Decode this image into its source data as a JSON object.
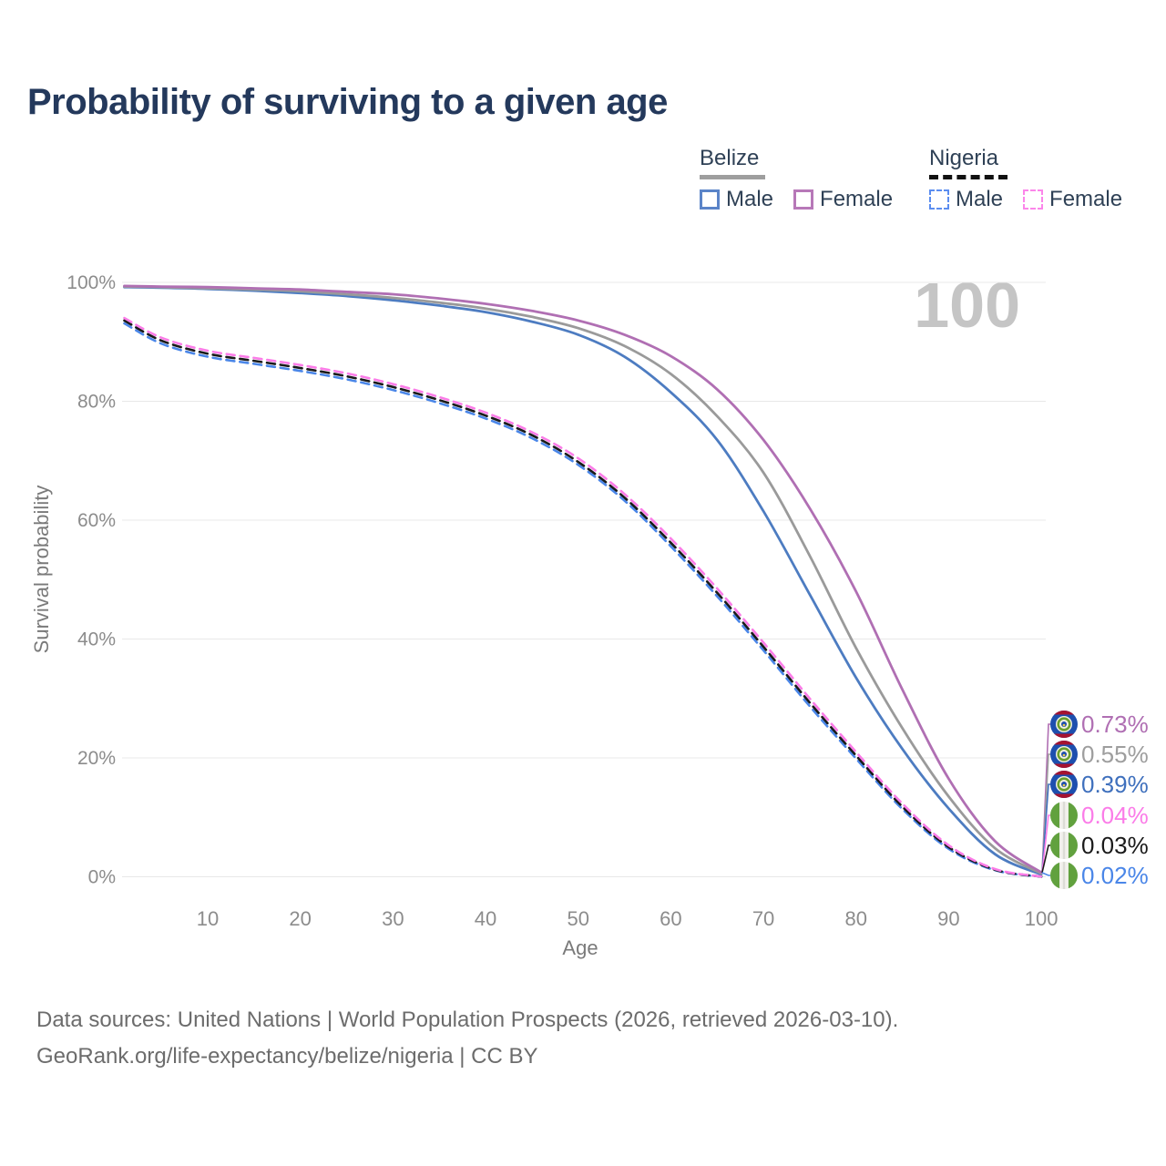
{
  "title": "Probability of surviving to a given age",
  "watermark": "100",
  "legend": {
    "groups": [
      {
        "country": "Belize",
        "line_style": "solid",
        "items": [
          {
            "label": "Male",
            "color": "#5b84c8"
          },
          {
            "label": "Female",
            "color": "#b778b8"
          }
        ]
      },
      {
        "country": "Nigeria",
        "line_style": "dashed",
        "items": [
          {
            "label": "Male",
            "color": "#5b8df0"
          },
          {
            "label": "Female",
            "color": "#fb86ea"
          }
        ]
      }
    ]
  },
  "chart_data": {
    "type": "line",
    "title": "Probability of surviving to a given age",
    "xlabel": "Age",
    "ylabel": "Survival probability",
    "xlim": [
      1,
      100
    ],
    "ylim": [
      0,
      100
    ],
    "grid": "horizontal",
    "legend_position": "top-right",
    "x_tick_values": [
      10,
      20,
      30,
      40,
      50,
      60,
      70,
      80,
      90,
      100
    ],
    "x_tick_labels": [
      "10",
      "20",
      "30",
      "40",
      "50",
      "60",
      "70",
      "80",
      "90",
      "100"
    ],
    "y_tick_values": [
      0,
      20,
      40,
      60,
      80,
      100
    ],
    "y_tick_labels": [
      "0%",
      "20%",
      "40%",
      "60%",
      "80%",
      "100%"
    ],
    "x": [
      1,
      5,
      10,
      15,
      20,
      25,
      30,
      35,
      40,
      45,
      50,
      55,
      60,
      65,
      70,
      75,
      80,
      85,
      90,
      95,
      100
    ],
    "series": [
      {
        "id": "belize-male",
        "name": "Belize Male",
        "country": "Belize",
        "sex": "Male",
        "color": "#4d7cc1",
        "dash": "solid",
        "end_label": "0.39%",
        "values": [
          99.2,
          99.1,
          98.9,
          98.6,
          98.2,
          97.7,
          97.0,
          96.1,
          95.0,
          93.4,
          91.2,
          87.5,
          81.5,
          73.5,
          61.5,
          47.5,
          33.5,
          21.5,
          11.5,
          3.8,
          0.39
        ]
      },
      {
        "id": "belize-both",
        "name": "Belize Both sexes",
        "country": "Belize",
        "sex": "Both",
        "color": "#9a9a9a",
        "dash": "solid",
        "end_label": "0.55%",
        "values": [
          99.3,
          99.2,
          99.0,
          98.8,
          98.5,
          98.0,
          97.4,
          96.6,
          95.6,
          94.2,
          92.3,
          89.3,
          84.6,
          77.5,
          68.0,
          54.0,
          38.5,
          25.0,
          13.5,
          4.8,
          0.55
        ]
      },
      {
        "id": "belize-female",
        "name": "Belize Female",
        "country": "Belize",
        "sex": "Female",
        "color": "#b06fb3",
        "dash": "solid",
        "end_label": "0.73%",
        "values": [
          99.4,
          99.3,
          99.2,
          99.0,
          98.8,
          98.4,
          98.0,
          97.3,
          96.4,
          95.2,
          93.6,
          91.2,
          87.6,
          82.0,
          73.5,
          62.0,
          48.0,
          31.5,
          16.5,
          6.0,
          0.73
        ]
      },
      {
        "id": "nigeria-male",
        "name": "Nigeria Male",
        "country": "Nigeria",
        "sex": "Male",
        "color": "#4a86e8",
        "dash": "dashed",
        "end_label": "0.02%",
        "values": [
          93.1,
          89.7,
          87.5,
          86.3,
          85.1,
          83.7,
          81.9,
          79.7,
          77.1,
          73.8,
          69.3,
          63.3,
          55.6,
          47.2,
          38.1,
          28.7,
          19.9,
          11.4,
          4.7,
          1.1,
          0.02
        ]
      },
      {
        "id": "nigeria-both",
        "name": "Nigeria Both sexes",
        "country": "Nigeria",
        "sex": "Both",
        "color": "#1a1a1a",
        "dash": "dashed",
        "end_label": "0.03%",
        "values": [
          93.6,
          90.2,
          88.0,
          86.8,
          85.6,
          84.2,
          82.4,
          80.2,
          77.6,
          74.3,
          69.8,
          63.8,
          56.2,
          47.8,
          38.7,
          29.3,
          20.4,
          11.8,
          5.0,
          1.2,
          0.03
        ]
      },
      {
        "id": "nigeria-female",
        "name": "Nigeria Female",
        "country": "Nigeria",
        "sex": "Female",
        "color": "#fb7ce8",
        "dash": "dashed",
        "end_label": "0.04%",
        "values": [
          94.0,
          90.7,
          88.5,
          87.3,
          86.1,
          84.7,
          82.9,
          80.7,
          78.1,
          74.8,
          70.4,
          64.4,
          56.9,
          48.5,
          39.4,
          30.0,
          21.0,
          12.3,
          5.3,
          1.3,
          0.04
        ]
      }
    ],
    "end_labels": [
      {
        "value": "0.73%",
        "color": "#b06fb3",
        "flag": "belize"
      },
      {
        "value": "0.55%",
        "color": "#9e9e9e",
        "flag": "belize"
      },
      {
        "value": "0.39%",
        "color": "#3f70bd",
        "flag": "belize"
      },
      {
        "value": "0.04%",
        "color": "#fb7ce8",
        "flag": "nigeria"
      },
      {
        "value": "0.03%",
        "color": "#1a1a1a",
        "flag": "nigeria"
      },
      {
        "value": "0.02%",
        "color": "#4a86e8",
        "flag": "nigeria"
      }
    ]
  },
  "footer": {
    "line1": "Data sources: United Nations | World Population Prospects (2026, retrieved 2026-03-10).",
    "line2": "GeoRank.org/life-expectancy/belize/nigeria | CC BY"
  }
}
